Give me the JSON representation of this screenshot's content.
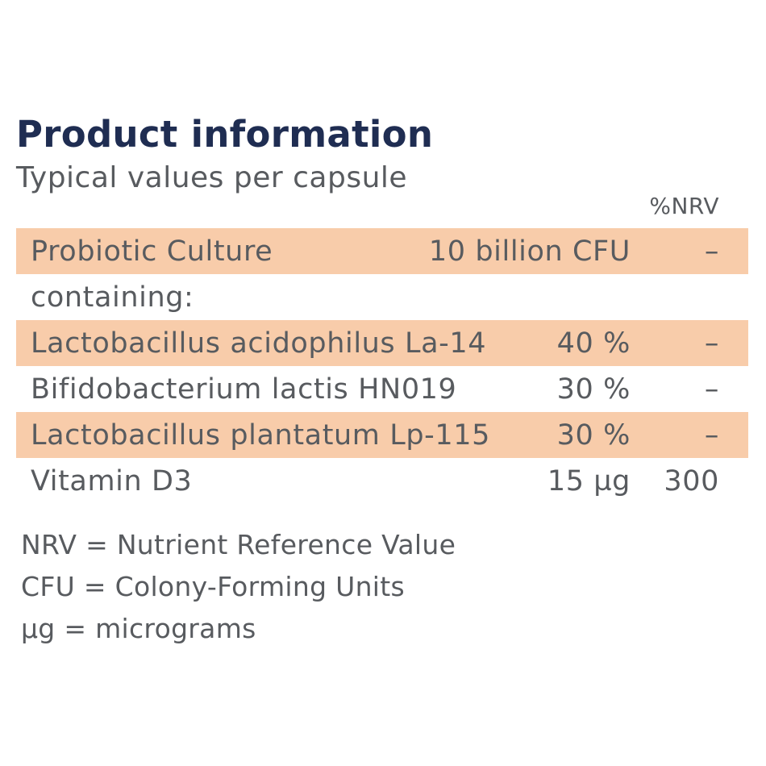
{
  "header": {
    "title": "Product information",
    "subtitle": "Typical values per capsule",
    "nrv_column_label": "%NRV"
  },
  "rows": [
    {
      "name": "Probiotic Culture",
      "amount": "10 billion CFU",
      "nrv": "–",
      "shaded": true
    },
    {
      "name": "containing:",
      "amount": "",
      "nrv": "",
      "shaded": false
    },
    {
      "name": "Lactobacillus acidophilus La-14",
      "amount": "40 %",
      "nrv": "–",
      "shaded": true
    },
    {
      "name": "Bifidobacterium lactis HN019",
      "amount": "30 %",
      "nrv": "–",
      "shaded": false
    },
    {
      "name": "Lactobacillus plantatum Lp-115",
      "amount": "30 %",
      "nrv": "–",
      "shaded": true
    },
    {
      "name": "Vitamin D3",
      "amount": "15 µg",
      "nrv": "300",
      "shaded": false
    }
  ],
  "footnotes": [
    "NRV = Nutrient Reference Value",
    "CFU = Colony-Forming Units",
    "µg = micrograms"
  ],
  "colors": {
    "title": "#1f2d52",
    "text": "#585b5f",
    "row_highlight": "#f8ccaa"
  }
}
